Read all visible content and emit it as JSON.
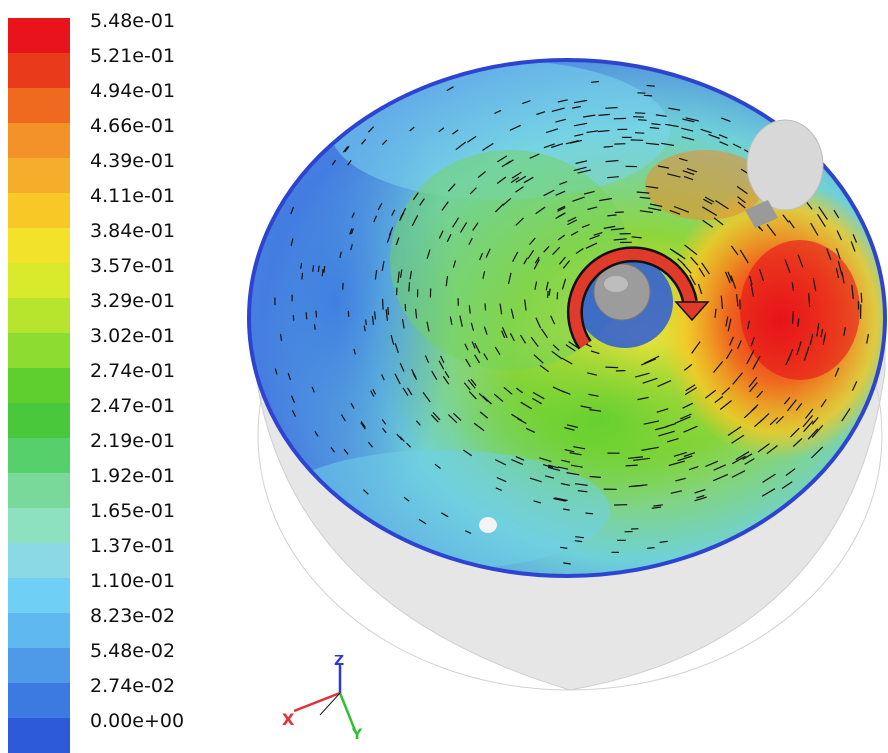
{
  "colorbar": {
    "ticks": [
      "5.48e-01",
      "5.21e-01",
      "4.94e-01",
      "4.66e-01",
      "4.39e-01",
      "4.11e-01",
      "3.84e-01",
      "3.57e-01",
      "3.29e-01",
      "3.02e-01",
      "2.74e-01",
      "2.47e-01",
      "2.19e-01",
      "1.92e-01",
      "1.65e-01",
      "1.37e-01",
      "1.10e-01",
      "8.23e-02",
      "5.48e-02",
      "2.74e-02",
      "0.00e+00"
    ],
    "colors": [
      "#e8131b",
      "#ea3a1c",
      "#ef6a1e",
      "#f4922a",
      "#f6ad2b",
      "#f8c826",
      "#f2e32a",
      "#d9ea2d",
      "#b7e52d",
      "#8cdc32",
      "#5fcf2f",
      "#48c83a",
      "#56d06a",
      "#79d99a",
      "#8de0c0",
      "#8ad9e4",
      "#6fcff5",
      "#5fb9f0",
      "#4f9ae8",
      "#3c7ae2",
      "#2d5ad9"
    ]
  },
  "scene": {
    "rotation_arrow_color": "#e03a2a",
    "axes": {
      "x_label": "X",
      "y_label": "Y",
      "z_label": "Z",
      "x_color": "#e0303a",
      "y_color": "#2fc22f",
      "z_color": "#2b38d6"
    }
  }
}
